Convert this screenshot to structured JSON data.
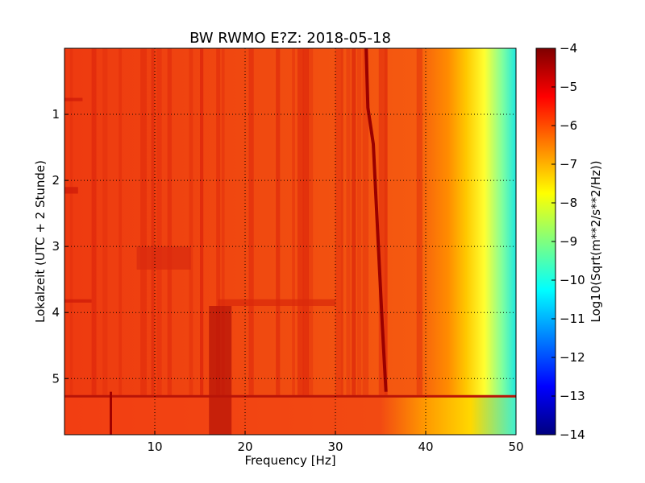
{
  "chart_data": {
    "type": "heatmap",
    "title": "BW RWMO E?Z: 2018-05-18",
    "xlabel": "Frequency [Hz]",
    "ylabel": "Lokalzeit (UTC + 2 Stunde)",
    "xlim": [
      0,
      50
    ],
    "ylim": [
      5.85,
      0
    ],
    "x_ticks": [
      10,
      20,
      30,
      40,
      50
    ],
    "y_ticks": [
      1,
      2,
      3,
      4,
      5
    ],
    "grid": true,
    "colormap": "jet",
    "colorbar": {
      "label": "Log10(Sqrt(m**2/s**2/Hz))",
      "range": [
        -14,
        -4
      ],
      "ticks": [
        -4,
        -5,
        -6,
        -7,
        -8,
        -9,
        -10,
        -11,
        -12,
        -13,
        -14
      ]
    },
    "features": [
      {
        "name": "drifting tonal line",
        "points": [
          [
            33.4,
            0
          ],
          [
            33.6,
            0.9
          ],
          [
            34.2,
            1.45
          ],
          [
            35.2,
            4.2
          ],
          [
            35.6,
            5.2
          ]
        ]
      },
      {
        "name": "broadband energy band",
        "time": [
          5.25,
          5.85
        ],
        "freq": [
          0,
          50
        ]
      },
      {
        "name": "enhanced band near 17 Hz",
        "time": [
          3.9,
          5.85
        ],
        "freq": [
          16,
          18.5
        ]
      }
    ]
  }
}
